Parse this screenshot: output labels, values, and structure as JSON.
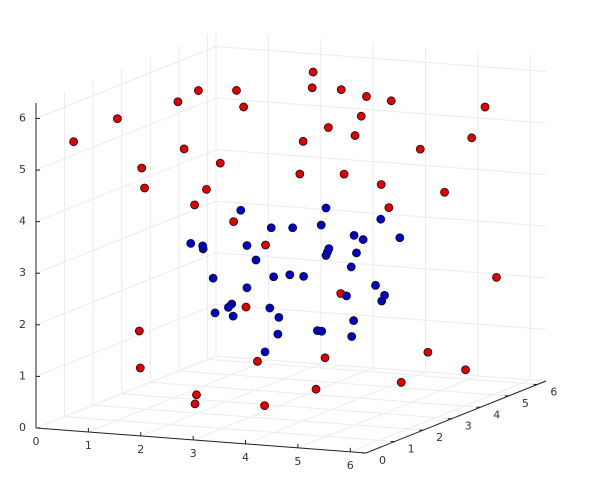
{
  "chart_data": {
    "type": "scatter3d",
    "xlim": [
      0,
      6.3
    ],
    "ylim": [
      0,
      6.3
    ],
    "zlim": [
      0,
      6.3
    ],
    "xticks": [
      0,
      1,
      2,
      3,
      4,
      5,
      6
    ],
    "yticks": [
      0,
      1,
      2,
      3,
      4,
      5,
      6
    ],
    "zticks": [
      0,
      1,
      2,
      3,
      4,
      5,
      6
    ],
    "grid": true,
    "series": [
      {
        "color": "#0000c8",
        "x": [
          3.1,
          2.4,
          4.0,
          3.6,
          2.0,
          4.5,
          3.3,
          2.8,
          3.9,
          1.8,
          4.2,
          3.0,
          2.6,
          3.5,
          4.8,
          2.2,
          3.8,
          3.2,
          1.5,
          4.4,
          2.9,
          3.7,
          2.5,
          4.1,
          3.4,
          1.9,
          4.6,
          2.7,
          3.1,
          3.6,
          2.3,
          4.3,
          3.0,
          2.1,
          3.9,
          4.9,
          2.6,
          3.3,
          1.7,
          4.0
        ],
        "y": [
          3.2,
          2.5,
          3.8,
          1.9,
          3.5,
          2.8,
          4.2,
          1.6,
          3.0,
          2.9,
          4.5,
          2.2,
          3.7,
          4.8,
          3.3,
          1.8,
          2.4,
          5.0,
          3.1,
          4.0,
          2.7,
          1.4,
          4.4,
          3.6,
          2.0,
          3.9,
          2.6,
          5.2,
          1.7,
          3.4,
          4.1,
          2.1,
          4.7,
          3.0,
          4.3,
          2.9,
          1.5,
          3.8,
          2.3,
          5.4
        ],
        "z": [
          2.5,
          1.8,
          3.2,
          2.0,
          3.6,
          1.5,
          2.8,
          2.2,
          3.9,
          2.4,
          1.9,
          3.0,
          1.2,
          2.6,
          2.1,
          3.3,
          2.7,
          1.7,
          2.9,
          3.5,
          1.1,
          2.3,
          3.1,
          1.6,
          3.7,
          2.0,
          2.9,
          2.4,
          3.4,
          1.4,
          2.2,
          3.8,
          2.6,
          1.9,
          3.0,
          2.5,
          2.1,
          1.3,
          3.2,
          2.8
        ]
      },
      {
        "color": "#e00000",
        "x": [
          0.5,
          1.2,
          2.3,
          3.4,
          4.5,
          5.6,
          6.0,
          0.8,
          1.9,
          2.7,
          3.8,
          4.9,
          5.3,
          0.3,
          1.5,
          2.9,
          4.1,
          5.8,
          0.9,
          2.1,
          3.2,
          4.6,
          5.5,
          1.1,
          2.5,
          3.6,
          4.3,
          5.9,
          0.6,
          1.7,
          3.0,
          4.8,
          5.1,
          0.2,
          2.0,
          3.9,
          5.7,
          1.4,
          2.6,
          4.0,
          6.1,
          0.7,
          3.3,
          4.7,
          5.2
        ],
        "y": [
          0.4,
          1.5,
          2.8,
          4.0,
          5.2,
          0.9,
          3.3,
          5.8,
          2.2,
          0.6,
          4.6,
          1.8,
          6.0,
          3.1,
          5.0,
          0.3,
          2.6,
          4.4,
          1.2,
          5.5,
          3.8,
          0.8,
          2.0,
          4.9,
          6.1,
          1.4,
          3.5,
          5.3,
          2.7,
          0.5,
          4.2,
          1.0,
          3.0,
          5.6,
          1.9,
          0.2,
          4.8,
          2.4,
          5.9,
          0.7,
          1.6,
          3.9,
          0.4,
          5.1,
          2.9
        ],
        "z": [
          5.5,
          4.8,
          6.1,
          5.2,
          4.6,
          5.9,
          4.3,
          5.0,
          6.2,
          4.4,
          5.7,
          4.9,
          5.3,
          0.5,
          0.3,
          0.8,
          1.1,
          0.6,
          5.8,
          4.5,
          6.0,
          5.1,
          4.7,
          3.0,
          5.4,
          0.4,
          5.6,
          2.2,
          4.1,
          1.9,
          6.2,
          0.9,
          4.0,
          3.4,
          0.2,
          2.6,
          5.0,
          5.9,
          1.5,
          3.7,
          1.0,
          4.6,
          5.3,
          0.7,
          6.1
        ]
      }
    ]
  }
}
